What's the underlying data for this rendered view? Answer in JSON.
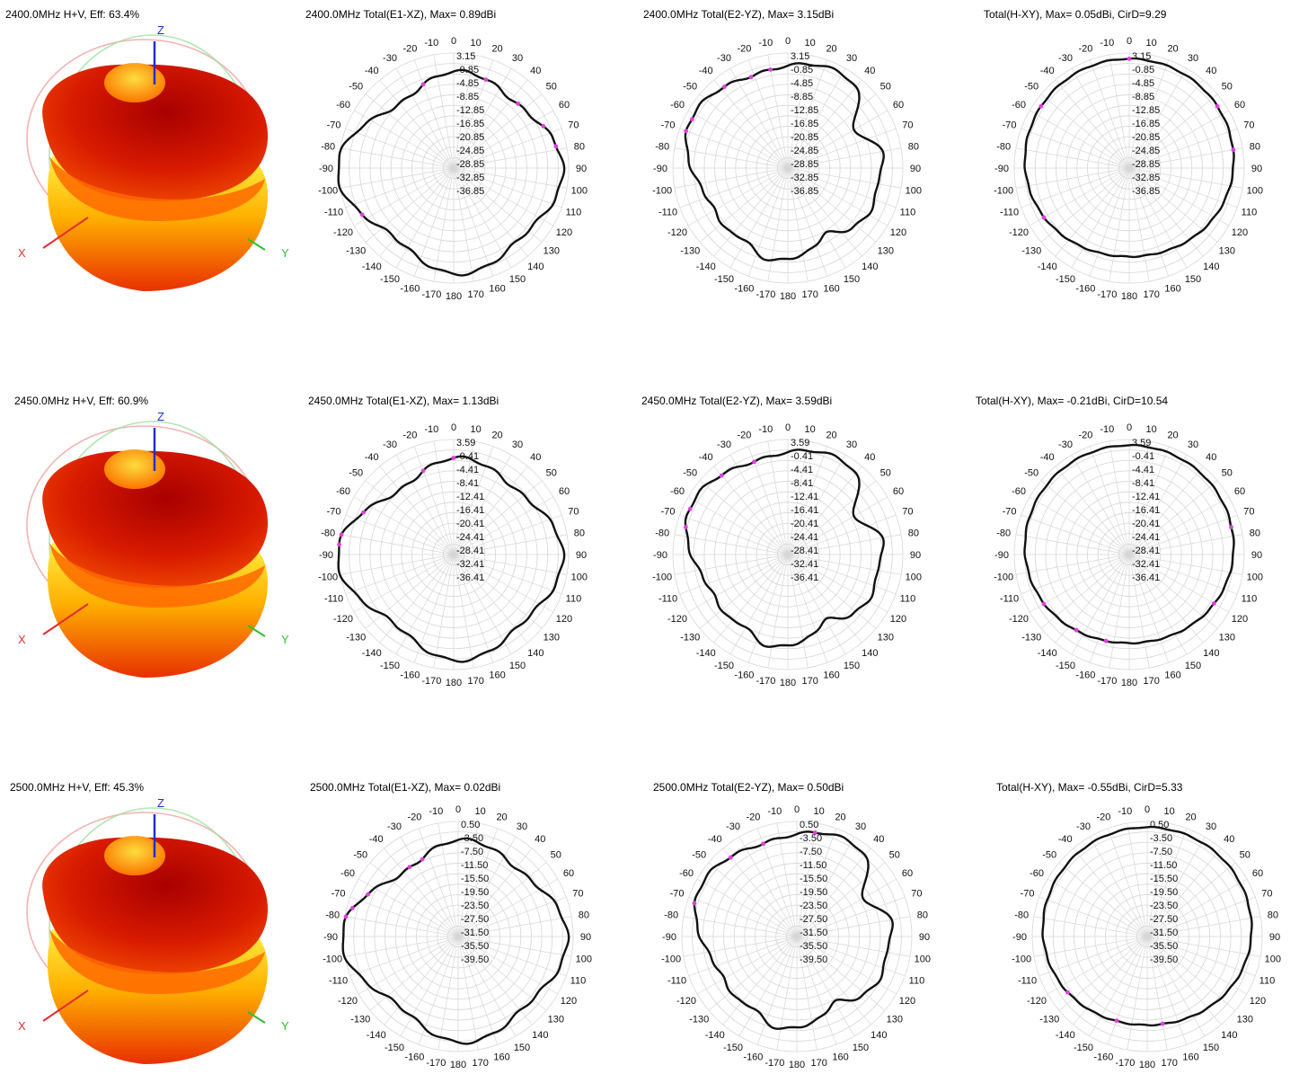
{
  "colors": {
    "pattern": "#111111",
    "grid": "#d6d6d6",
    "marker": "#e040e0",
    "axisX": "#e03030",
    "axisY": "#30c030",
    "axisZ": "#2030d0"
  },
  "rows": [
    {
      "title3d": "2400.0MHz H+V, Eff: 63.4%",
      "axes3d": {
        "z": "Z",
        "x": "X",
        "y": "Y"
      },
      "charts": [
        {
          "title": "2400.0MHz Total(E1-XZ), Max= 0.89dBi",
          "levels": [
            "3.15",
            "-0.85",
            "-4.85",
            "-8.85",
            "-12.85",
            "-16.85",
            "-20.85",
            "-24.85",
            "-28.85",
            "-32.85",
            "-36.85"
          ],
          "shape": "e1",
          "markers": [
            -20,
            20,
            45,
            65,
            78,
            -117
          ]
        },
        {
          "title": "2400.0MHz Total(E2-YZ), Max= 3.15dBi",
          "levels": [
            "3.15",
            "-0.85",
            "-4.85",
            "-8.85",
            "-12.85",
            "-16.85",
            "-20.85",
            "-24.85",
            "-28.85",
            "-32.85",
            "-36.85"
          ],
          "shape": "e2",
          "markers": [
            -38,
            -22,
            -10,
            -63,
            -70
          ]
        },
        {
          "title": "Total(H-XY), Max= 0.05dBi, CirD=9.29",
          "levels": [
            "3.15",
            "-0.85",
            "-4.85",
            "-8.85",
            "-12.85",
            "-16.85",
            "-20.85",
            "-24.85",
            "-28.85",
            "-32.85",
            "-36.85"
          ],
          "shape": "h",
          "markers": [
            0,
            -55,
            55,
            80,
            -120
          ]
        }
      ]
    },
    {
      "title3d": "2450.0MHz H+V, Eff: 60.9%",
      "axes3d": {
        "z": "Z",
        "x": "X",
        "y": "Y"
      },
      "charts": [
        {
          "title": "2450.0MHz Total(E1-XZ), Max= 1.13dBi",
          "levels": [
            "3.59",
            "-0.41",
            "-4.41",
            "-8.41",
            "-12.41",
            "-16.41",
            "-20.41",
            "-24.41",
            "-28.41",
            "-32.41",
            "-36.41"
          ],
          "shape": "e1",
          "markers": [
            -20,
            0,
            -65,
            -80,
            -85
          ]
        },
        {
          "title": "2450.0MHz Total(E2-YZ), Max= 3.59dBi",
          "levels": [
            "3.59",
            "-0.41",
            "-4.41",
            "-8.41",
            "-12.41",
            "-16.41",
            "-20.41",
            "-24.41",
            "-28.41",
            "-32.41",
            "-36.41"
          ],
          "shape": "e2",
          "markers": [
            -40,
            -20,
            -65,
            -75
          ]
        },
        {
          "title": "Total(H-XY), Max= -0.21dBi, CirD=10.54",
          "levels": [
            "3.59",
            "-0.41",
            "-4.41",
            "-8.41",
            "-12.41",
            "-16.41",
            "-20.41",
            "-24.41",
            "-28.41",
            "-32.41",
            "-36.41"
          ],
          "shape": "h",
          "markers": [
            75,
            120,
            -120,
            -145,
            -165
          ]
        }
      ]
    },
    {
      "title3d": "2500.0MHz H+V, Eff: 45.3%",
      "axes3d": {
        "z": "Z",
        "x": "X",
        "y": "Y"
      },
      "charts": [
        {
          "title": "2500.0MHz Total(E1-XZ), Max= 0.02dBi",
          "levels": [
            "0.50",
            "-3.50",
            "-7.50",
            "-11.50",
            "-15.50",
            "-19.50",
            "-23.50",
            "-27.50",
            "-31.50",
            "-35.50",
            "-39.50"
          ],
          "shape": "e1",
          "markers": [
            -35,
            -25,
            -65,
            -75,
            -80
          ]
        },
        {
          "title": "2500.0MHz Total(E2-YZ), Max= 0.50dBi",
          "levels": [
            "0.50",
            "-3.50",
            "-7.50",
            "-11.50",
            "-15.50",
            "-19.50",
            "-23.50",
            "-27.50",
            "-31.50",
            "-35.50",
            "-39.50"
          ],
          "shape": "e2",
          "markers": [
            -40,
            -20,
            10,
            -72
          ]
        },
        {
          "title": "Total(H-XY), Max= -0.55dBi, CirD=5.33",
          "levels": [
            "0.50",
            "-3.50",
            "-7.50",
            "-11.50",
            "-15.50",
            "-19.50",
            "-23.50",
            "-27.50",
            "-31.50",
            "-35.50",
            "-39.50"
          ],
          "shape": "h",
          "markers": [
            -125,
            -160,
            170
          ]
        }
      ]
    }
  ],
  "angle_labels": [
    "0",
    "10",
    "20",
    "30",
    "40",
    "50",
    "60",
    "70",
    "80",
    "90",
    "100",
    "110",
    "120",
    "130",
    "140",
    "150",
    "160",
    "170",
    "180",
    "-170",
    "-160",
    "-150",
    "-140",
    "-130",
    "-120",
    "-110",
    "-100",
    "-90",
    "-80",
    "-70",
    "-60",
    "-50",
    "-40",
    "-30",
    "-20",
    "-10"
  ],
  "chart_data": [
    {
      "type": "polar",
      "title": "2400.0MHz Total(E1-XZ), Max= 0.89dBi",
      "r_ticks": [
        "3.15",
        "-0.85",
        "-4.85",
        "-8.85",
        "-12.85",
        "-16.85",
        "-20.85",
        "-24.85",
        "-28.85",
        "-32.85",
        "-36.85"
      ],
      "theta_deg": [
        0,
        30,
        60,
        90,
        120,
        150,
        180,
        -150,
        -120,
        -90,
        -60,
        -30
      ],
      "r_dbi": [
        0.5,
        0.3,
        0.8,
        -3,
        0.5,
        -1,
        -2,
        -2,
        -1.5,
        -3.5,
        -3,
        -0.5
      ]
    },
    {
      "type": "polar",
      "title": "2400.0MHz Total(E2-YZ), Max= 3.15dBi",
      "r_ticks": [
        "3.15",
        "-0.85",
        "-4.85",
        "-8.85",
        "-12.85",
        "-16.85",
        "-20.85",
        "-24.85",
        "-28.85",
        "-32.85",
        "-36.85"
      ],
      "theta_deg": [
        0,
        30,
        60,
        90,
        120,
        150,
        180,
        -150,
        -120,
        -90,
        -60,
        -30
      ],
      "r_dbi": [
        2.5,
        -4,
        -8,
        -1,
        -1,
        -2,
        -3,
        -2,
        -2,
        -1.5,
        0,
        2.5
      ]
    },
    {
      "type": "polar",
      "title": "Total(H-XY), Max= 0.05dBi, CirD=9.29",
      "r_ticks": [
        "3.15",
        "-0.85",
        "-4.85",
        "-8.85",
        "-12.85",
        "-16.85",
        "-20.85",
        "-24.85",
        "-28.85",
        "-32.85",
        "-36.85"
      ],
      "theta_deg": [
        0,
        30,
        60,
        90,
        120,
        150,
        180,
        -150,
        -120,
        -90,
        -60,
        -30
      ],
      "r_dbi": [
        0,
        -0.5,
        -1,
        -1.5,
        -2,
        -3,
        -4,
        -3,
        -2,
        -1.5,
        -1,
        -0.5
      ]
    },
    {
      "type": "polar",
      "title": "2450.0MHz Total(E1-XZ), Max= 1.13dBi",
      "r_ticks": [
        "3.59",
        "-0.41",
        "-4.41",
        "-8.41",
        "-12.41",
        "-16.41",
        "-20.41",
        "-24.41",
        "-28.41",
        "-32.41",
        "-36.41"
      ],
      "theta_deg": [
        0,
        30,
        60,
        90,
        120,
        150,
        180,
        -150,
        -120,
        -90,
        -60,
        -30
      ],
      "r_dbi": [
        0.5,
        0,
        -0.5,
        -3,
        0.5,
        -1.5,
        -2,
        -2,
        -1,
        -3,
        -2.5,
        0
      ]
    },
    {
      "type": "polar",
      "title": "2450.0MHz Total(E2-YZ), Max= 3.59dBi",
      "r_ticks": [
        "3.59",
        "-0.41",
        "-4.41",
        "-8.41",
        "-12.41",
        "-16.41",
        "-20.41",
        "-24.41",
        "-28.41",
        "-32.41",
        "-36.41"
      ],
      "theta_deg": [
        0,
        30,
        60,
        90,
        120,
        150,
        180,
        -150,
        -120,
        -90,
        -60,
        -30
      ],
      "r_dbi": [
        2.5,
        -3,
        -8,
        0,
        -0.5,
        -2,
        -2.5,
        -2,
        -2,
        -1.5,
        0,
        3
      ]
    },
    {
      "type": "polar",
      "title": "Total(H-XY), Max= -0.21dBi, CirD=10.54",
      "r_ticks": [
        "3.59",
        "-0.41",
        "-4.41",
        "-8.41",
        "-12.41",
        "-16.41",
        "-20.41",
        "-24.41",
        "-28.41",
        "-32.41",
        "-36.41"
      ],
      "theta_deg": [
        0,
        30,
        60,
        90,
        120,
        150,
        180,
        -150,
        -120,
        -90,
        -60,
        -30
      ],
      "r_dbi": [
        -0.5,
        -1,
        -1,
        -1.5,
        -2.5,
        -5,
        -7,
        -5,
        -2.5,
        -1.5,
        -1,
        -0.5
      ]
    },
    {
      "type": "polar",
      "title": "2500.0MHz Total(E1-XZ), Max= 0.02dBi",
      "r_ticks": [
        "0.50",
        "-3.50",
        "-7.50",
        "-11.50",
        "-15.50",
        "-19.50",
        "-23.50",
        "-27.50",
        "-31.50",
        "-35.50",
        "-39.50"
      ],
      "theta_deg": [
        0,
        30,
        60,
        90,
        120,
        150,
        180,
        -150,
        -120,
        -90,
        -60,
        -30
      ],
      "r_dbi": [
        -3,
        -2,
        -2,
        -4,
        -1,
        -3,
        -4,
        -3,
        -1.5,
        -3,
        -2,
        -1
      ]
    },
    {
      "type": "polar",
      "title": "2500.0MHz Total(E2-YZ), Max= 0.50dBi",
      "r_ticks": [
        "0.50",
        "-3.50",
        "-7.50",
        "-11.50",
        "-15.50",
        "-19.50",
        "-23.50",
        "-27.50",
        "-31.50",
        "-35.50",
        "-39.50"
      ],
      "theta_deg": [
        0,
        30,
        60,
        90,
        120,
        150,
        180,
        -150,
        -120,
        -90,
        -60,
        -30
      ],
      "r_dbi": [
        -1,
        -6,
        -3,
        -2,
        -2,
        -4,
        -4,
        -3,
        -3,
        -2,
        -1,
        0
      ]
    },
    {
      "type": "polar",
      "title": "Total(H-XY), Max= -0.55dBi, CirD=5.33",
      "r_ticks": [
        "0.50",
        "-3.50",
        "-7.50",
        "-11.50",
        "-15.50",
        "-19.50",
        "-23.50",
        "-27.50",
        "-31.50",
        "-35.50",
        "-39.50"
      ],
      "theta_deg": [
        0,
        30,
        60,
        90,
        120,
        150,
        180,
        -150,
        -120,
        -90,
        -60,
        -30
      ],
      "r_dbi": [
        -0.5,
        -1,
        -1,
        -1,
        -1.5,
        -2,
        -2.5,
        -2,
        -1.5,
        -1,
        -1,
        -0.5
      ]
    }
  ]
}
